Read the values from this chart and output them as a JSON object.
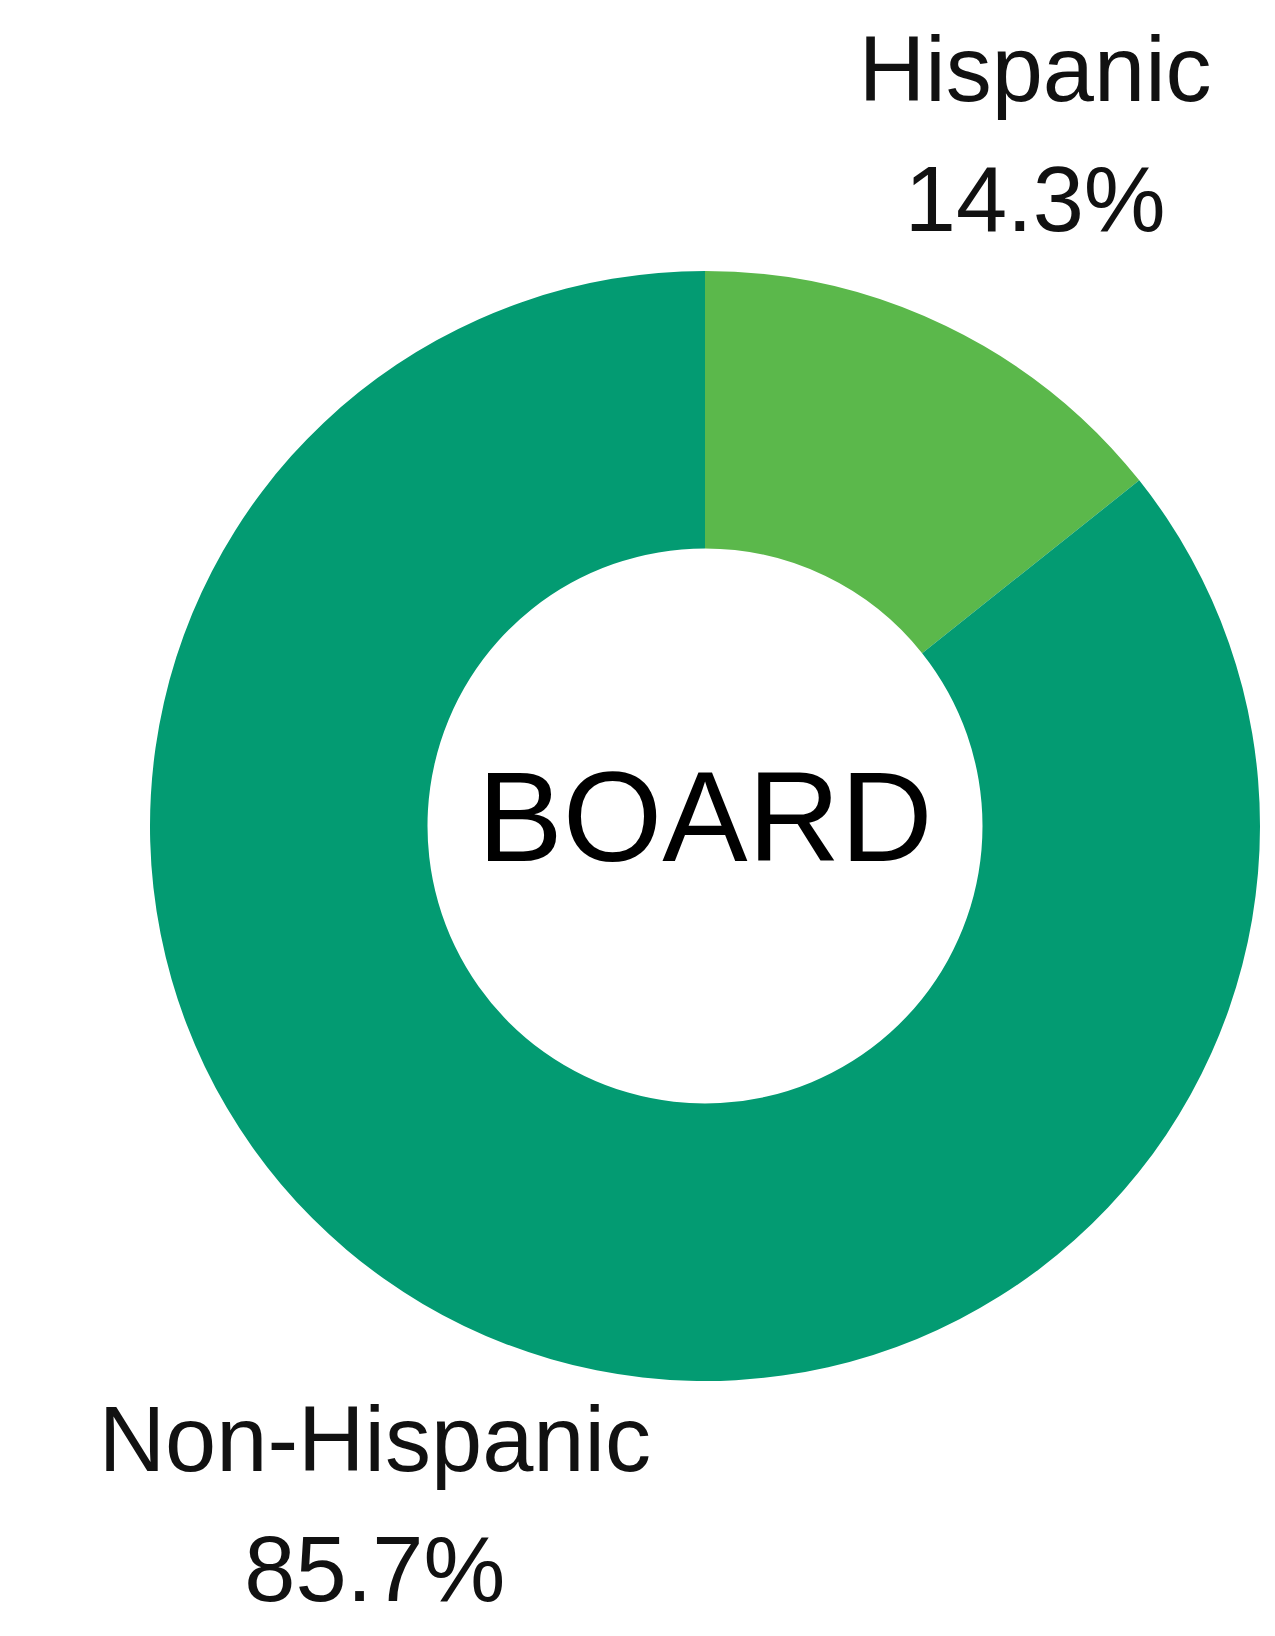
{
  "chart_data": {
    "type": "donut",
    "title": "BOARD",
    "categories": [
      "Hispanic",
      "Non-Hispanic"
    ],
    "values": [
      14.3,
      85.7
    ],
    "value_labels": [
      "14.3%",
      "85.7%"
    ],
    "colors": [
      "#5bb84b",
      "#039b72"
    ],
    "legend": false
  }
}
